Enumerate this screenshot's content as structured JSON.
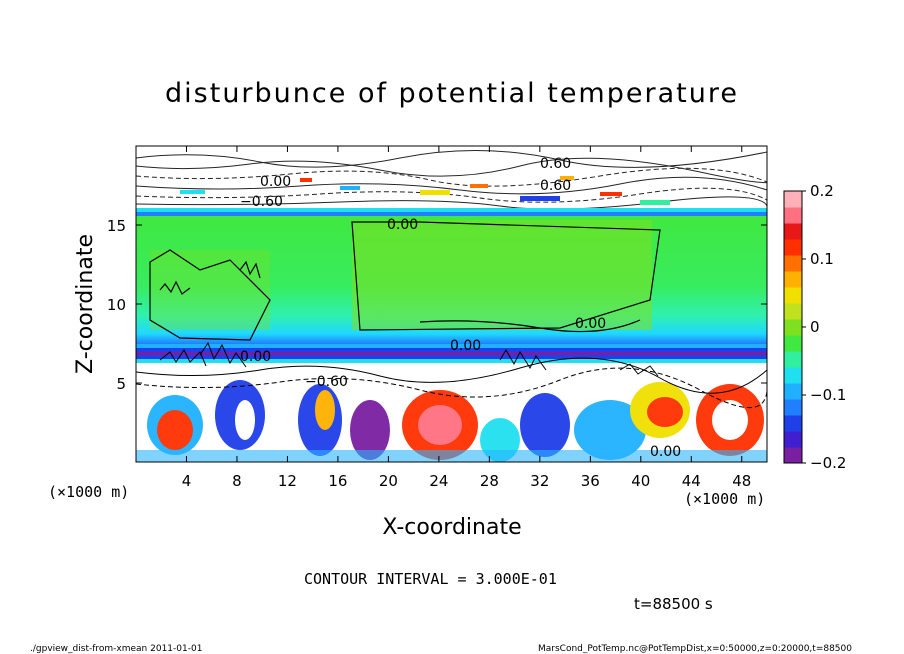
{
  "chart_data": {
    "type": "heatmap",
    "title": "disturbunce of potential temperature",
    "xlabel": "X-coordinate",
    "ylabel": "Z-coordinate",
    "x_unit_left": "(×1000 m)",
    "x_unit_right": "(×1000 m)",
    "xlim": [
      0,
      50
    ],
    "ylim": [
      0,
      20
    ],
    "x_ticks": [
      "4",
      "8",
      "12",
      "16",
      "20",
      "24",
      "28",
      "32",
      "36",
      "40",
      "44",
      "48"
    ],
    "x_tick_values": [
      4,
      8,
      12,
      16,
      20,
      24,
      28,
      32,
      36,
      40,
      44,
      48
    ],
    "y_ticks": [
      "5",
      "10",
      "15"
    ],
    "y_tick_values": [
      5,
      10,
      15
    ],
    "colorbar": {
      "min": -0.2,
      "max": 0.2,
      "tick_labels": [
        "0.2",
        "0.1",
        "0",
        "−0.1",
        "−0.2"
      ],
      "tick_values": [
        0.2,
        0.1,
        0,
        -0.1,
        -0.2
      ],
      "colors": [
        "#7b1fa2",
        "#3f1fd0",
        "#1f3fe8",
        "#1f7fff",
        "#20b0ff",
        "#20e0f0",
        "#30f0a0",
        "#40e840",
        "#7ee020",
        "#c0e020",
        "#f0e000",
        "#ffb000",
        "#ff7000",
        "#ff3000",
        "#e81818",
        "#ff7080",
        "#ffb0b8"
      ]
    },
    "contour_labels": [
      "0.00",
      "0.00",
      "0.00",
      "0.00",
      "0.00",
      "0.00",
      "−0.60",
      "−0.60",
      "0.60",
      "0.60"
    ],
    "contour_interval": "CONTOUR INTERVAL = 3.000E-01",
    "time_label": "t=88500 s"
  },
  "footer": {
    "left": "./gpview_dist-from-xmean  2011-01-01",
    "right": "MarsCond_PotTemp.nc@PotTempDist,x=0:50000,z=0:20000,t=88500"
  }
}
